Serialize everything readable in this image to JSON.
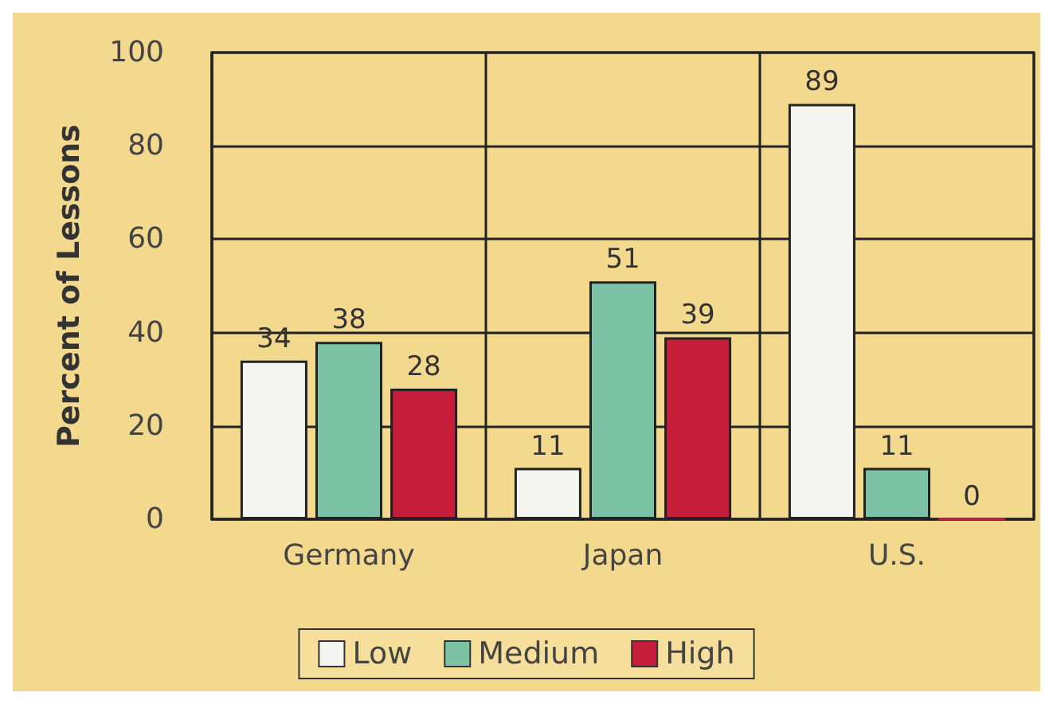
{
  "chart_data": {
    "type": "bar",
    "ylabel": "Percent of Lessons",
    "categories": [
      "Germany",
      "Japan",
      "U.S."
    ],
    "series": [
      {
        "name": "Low",
        "color": "#f4f4f0",
        "values": [
          34,
          11,
          89
        ]
      },
      {
        "name": "Medium",
        "color": "#7cc3a6",
        "values": [
          38,
          51,
          11
        ]
      },
      {
        "name": "High",
        "color": "#c61d3b",
        "values": [
          28,
          39,
          0
        ]
      }
    ],
    "ylim": [
      0,
      100
    ],
    "yticks": [
      0,
      20,
      40,
      60,
      80,
      100
    ],
    "grid": true,
    "legend": "bottom",
    "data_labels": true
  }
}
